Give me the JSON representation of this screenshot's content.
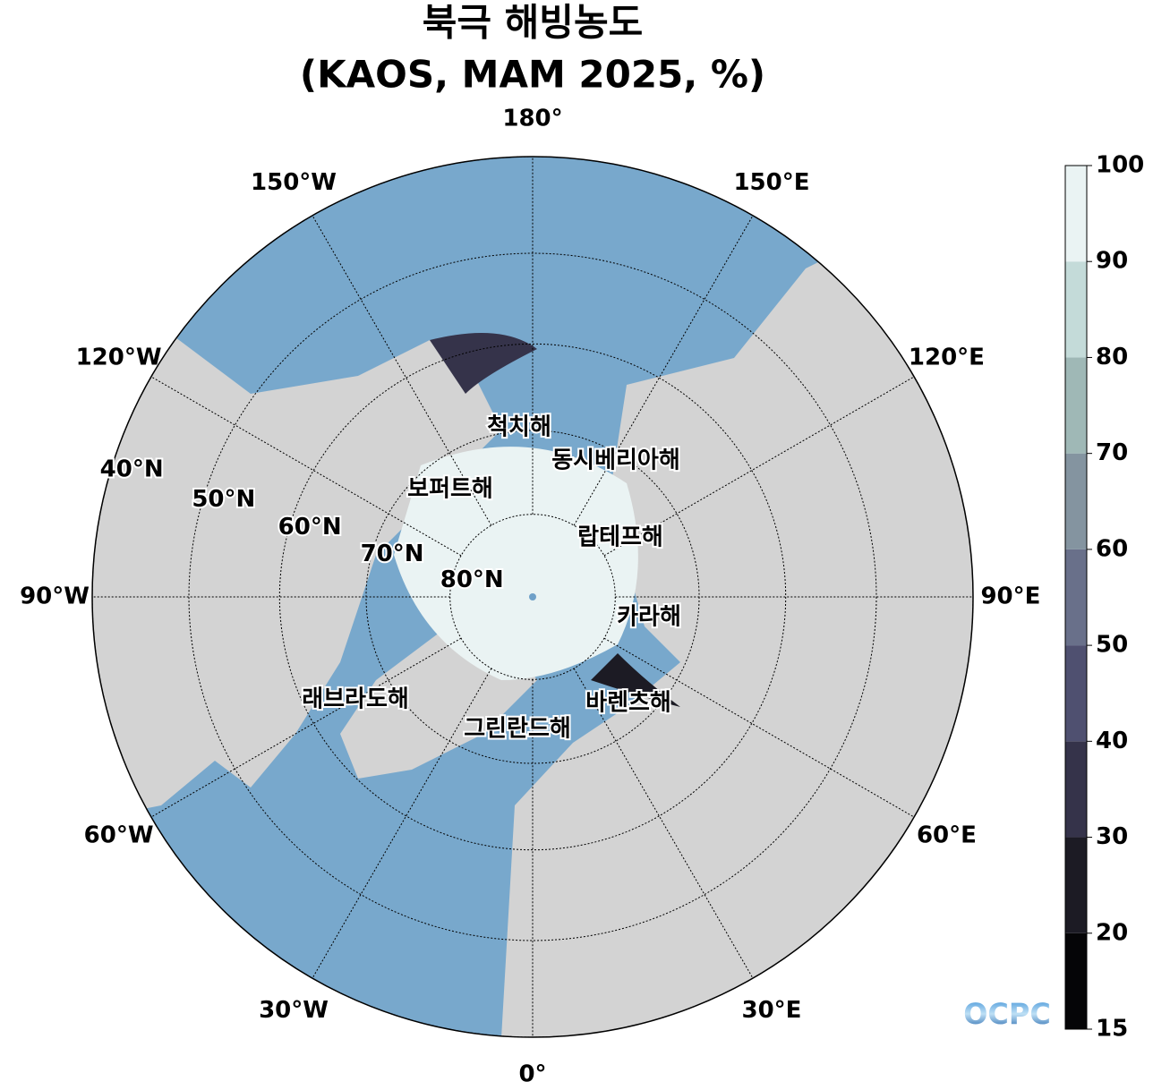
{
  "map": {
    "title": [
      "북극 해빙농도",
      "(KAOS, MAM 2025, %)"
    ],
    "meridians": [
      {
        "value": 180,
        "label": "180°"
      },
      {
        "value": 150,
        "label": "150°E"
      },
      {
        "value": 120,
        "label": "120°E"
      },
      {
        "value": 90,
        "label": "90°E"
      },
      {
        "value": 60,
        "label": "60°E"
      },
      {
        "value": 30,
        "label": "30°E"
      },
      {
        "value": 0,
        "label": "0°"
      },
      {
        "value": -30,
        "label": "30°W"
      },
      {
        "value": -60,
        "label": "60°W"
      },
      {
        "value": -90,
        "label": "90°W"
      },
      {
        "value": -120,
        "label": "120°W"
      },
      {
        "value": -150,
        "label": "150°W"
      }
    ],
    "parallels": [
      {
        "value": 40,
        "label": "40°N"
      },
      {
        "value": 50,
        "label": "50°N"
      },
      {
        "value": 60,
        "label": "60°N"
      },
      {
        "value": 70,
        "label": "70°N"
      },
      {
        "value": 80,
        "label": "80°N"
      }
    ],
    "seas": [
      "척치해",
      "동시베리아해",
      "보퍼트해",
      "랍테프해",
      "카라해",
      "래브라도해",
      "바렌츠해",
      "그린란드해"
    ],
    "colorbar": {
      "ticks": [
        15,
        20,
        30,
        40,
        50,
        60,
        70,
        80,
        90,
        100
      ],
      "colors": [
        "#050507",
        "#1c1b24",
        "#35334a",
        "#4f5070",
        "#69708a",
        "#8494a0",
        "#9fb8b6",
        "#c4dbd9",
        "#eaf3f3"
      ]
    },
    "logo": "OCPC"
  }
}
